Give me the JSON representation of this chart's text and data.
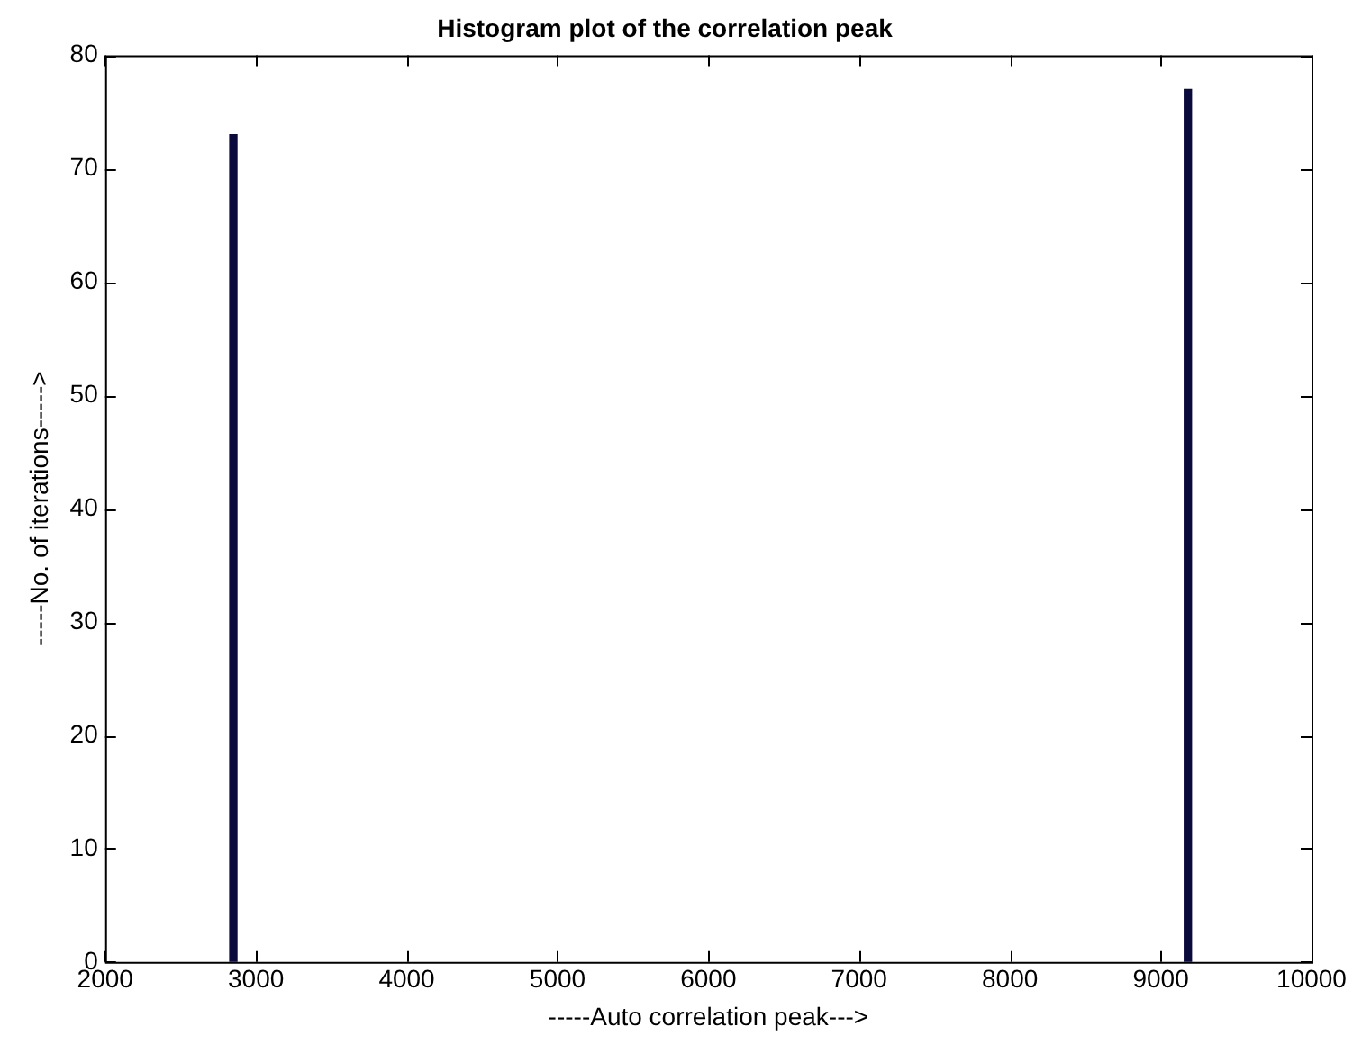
{
  "chart_data": {
    "type": "bar",
    "title": "Histogram plot of the correlation peak",
    "xlabel": "-----Auto correlation peak--->",
    "ylabel": "-----No. of iterations----->",
    "x": [
      2850,
      9180
    ],
    "values": [
      73,
      77
    ],
    "color": "#0a0a3c",
    "xlim": [
      2000,
      10000
    ],
    "xticks": [
      2000,
      3000,
      4000,
      5000,
      6000,
      7000,
      8000,
      9000,
      10000
    ],
    "ylim": [
      0,
      80
    ],
    "yticks": [
      0,
      10,
      20,
      30,
      40,
      50,
      60,
      70,
      80
    ],
    "grid": false,
    "legend": false
  }
}
